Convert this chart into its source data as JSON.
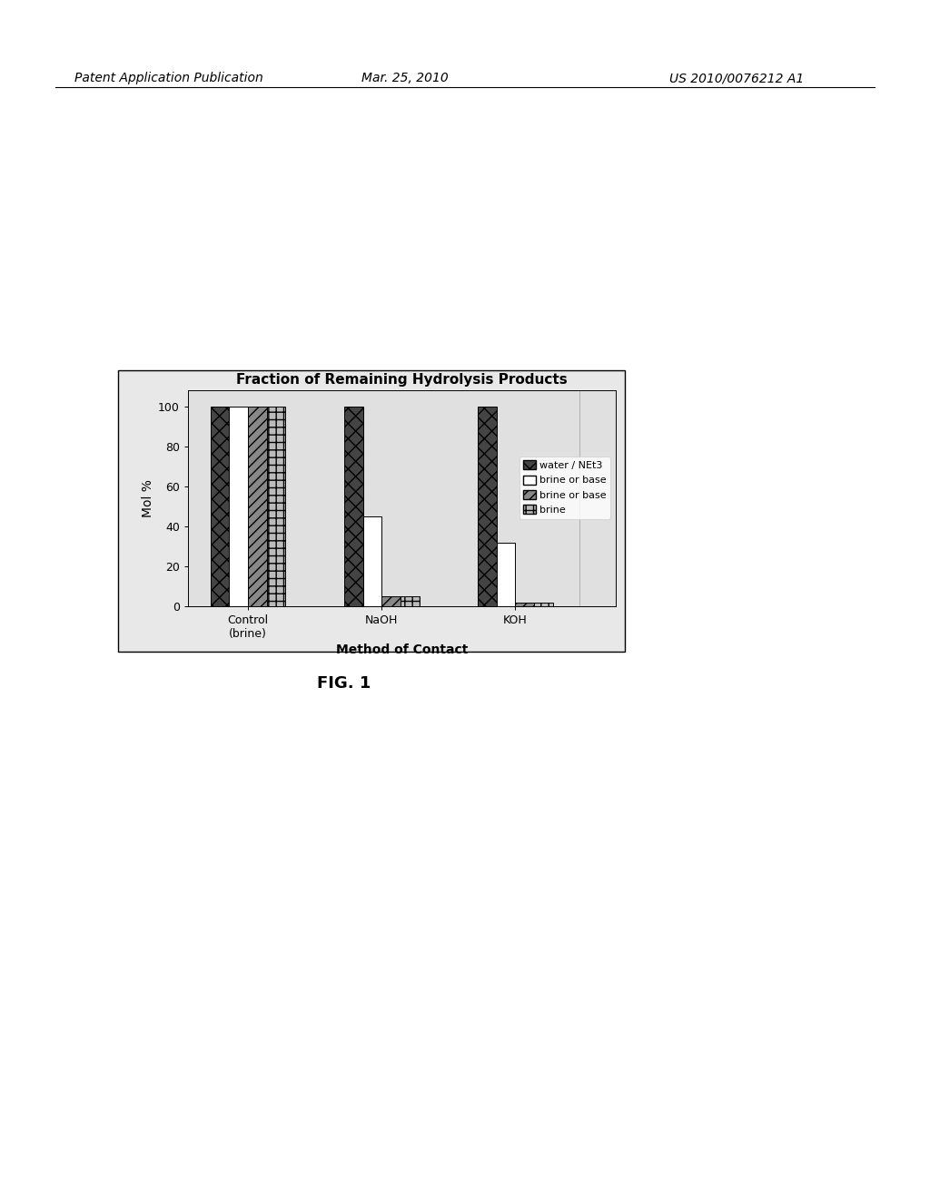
{
  "title": "Fraction of Remaining Hydrolysis Products",
  "xlabel": "Method of Contact",
  "ylabel": "Mol %",
  "categories": [
    "Control\n(brine)",
    "NaOH",
    "KOH"
  ],
  "series": [
    {
      "label": "water / NEt3",
      "values": [
        100,
        100,
        100
      ],
      "color": "#444444",
      "hatch": "xx",
      "edgecolor": "#000000"
    },
    {
      "label": "brine or base",
      "values": [
        100,
        45,
        32
      ],
      "color": "#ffffff",
      "hatch": "",
      "edgecolor": "#000000"
    },
    {
      "label": "brine or base",
      "values": [
        100,
        5,
        2
      ],
      "color": "#888888",
      "hatch": "///",
      "edgecolor": "#000000"
    },
    {
      "label": "brine",
      "values": [
        100,
        5,
        2
      ],
      "color": "#bbbbbb",
      "hatch": "++",
      "edgecolor": "#000000"
    }
  ],
  "ylim": [
    0,
    108
  ],
  "yticks": [
    0,
    20,
    40,
    60,
    80,
    100
  ],
  "bar_width": 0.14,
  "fig_background": "#ffffff",
  "chart_bg": "#e0e0e0",
  "title_fontsize": 11,
  "axis_label_fontsize": 10,
  "tick_fontsize": 9,
  "legend_fontsize": 8,
  "header_left": "Patent Application Publication",
  "header_center": "Mar. 25, 2010",
  "header_right": "US 2010/0076212 A1",
  "fig_label": "FIG. 1"
}
